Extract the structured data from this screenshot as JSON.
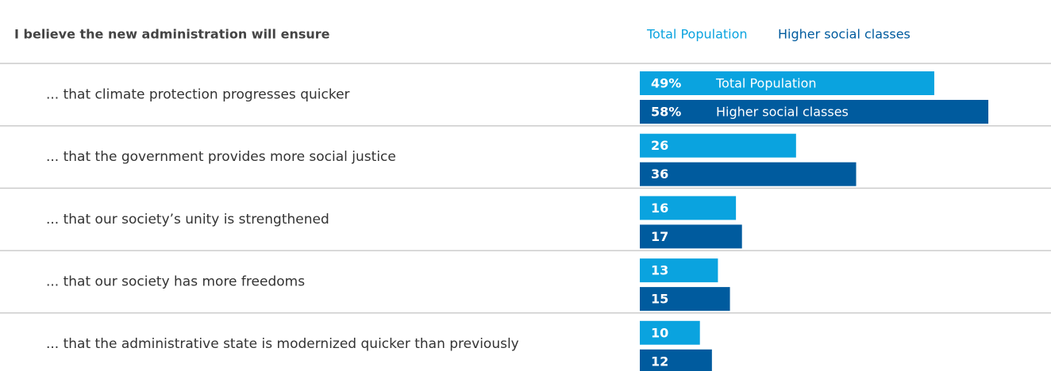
{
  "chart_data": {
    "type": "bar",
    "orientation": "horizontal",
    "title": "I believe the new administration will ensure",
    "categories": [
      "... that climate protection progresses quicker",
      "... that the government provides more social justice",
      "... that our society’s unity is strengthened",
      "... that our society has more freedoms",
      "... that the administrative state is modernized quicker than previously"
    ],
    "series": [
      {
        "name": "Total Population",
        "color": "#0aa3df",
        "values": [
          49,
          26,
          16,
          13,
          10
        ],
        "value_labels": [
          "49%",
          "26",
          "16",
          "13",
          "10"
        ]
      },
      {
        "name": "Higher social classes",
        "color": "#005b9e",
        "values": [
          58,
          36,
          17,
          15,
          12
        ],
        "value_labels": [
          "58%",
          "36",
          "17",
          "15",
          "12"
        ]
      }
    ]
  }
}
